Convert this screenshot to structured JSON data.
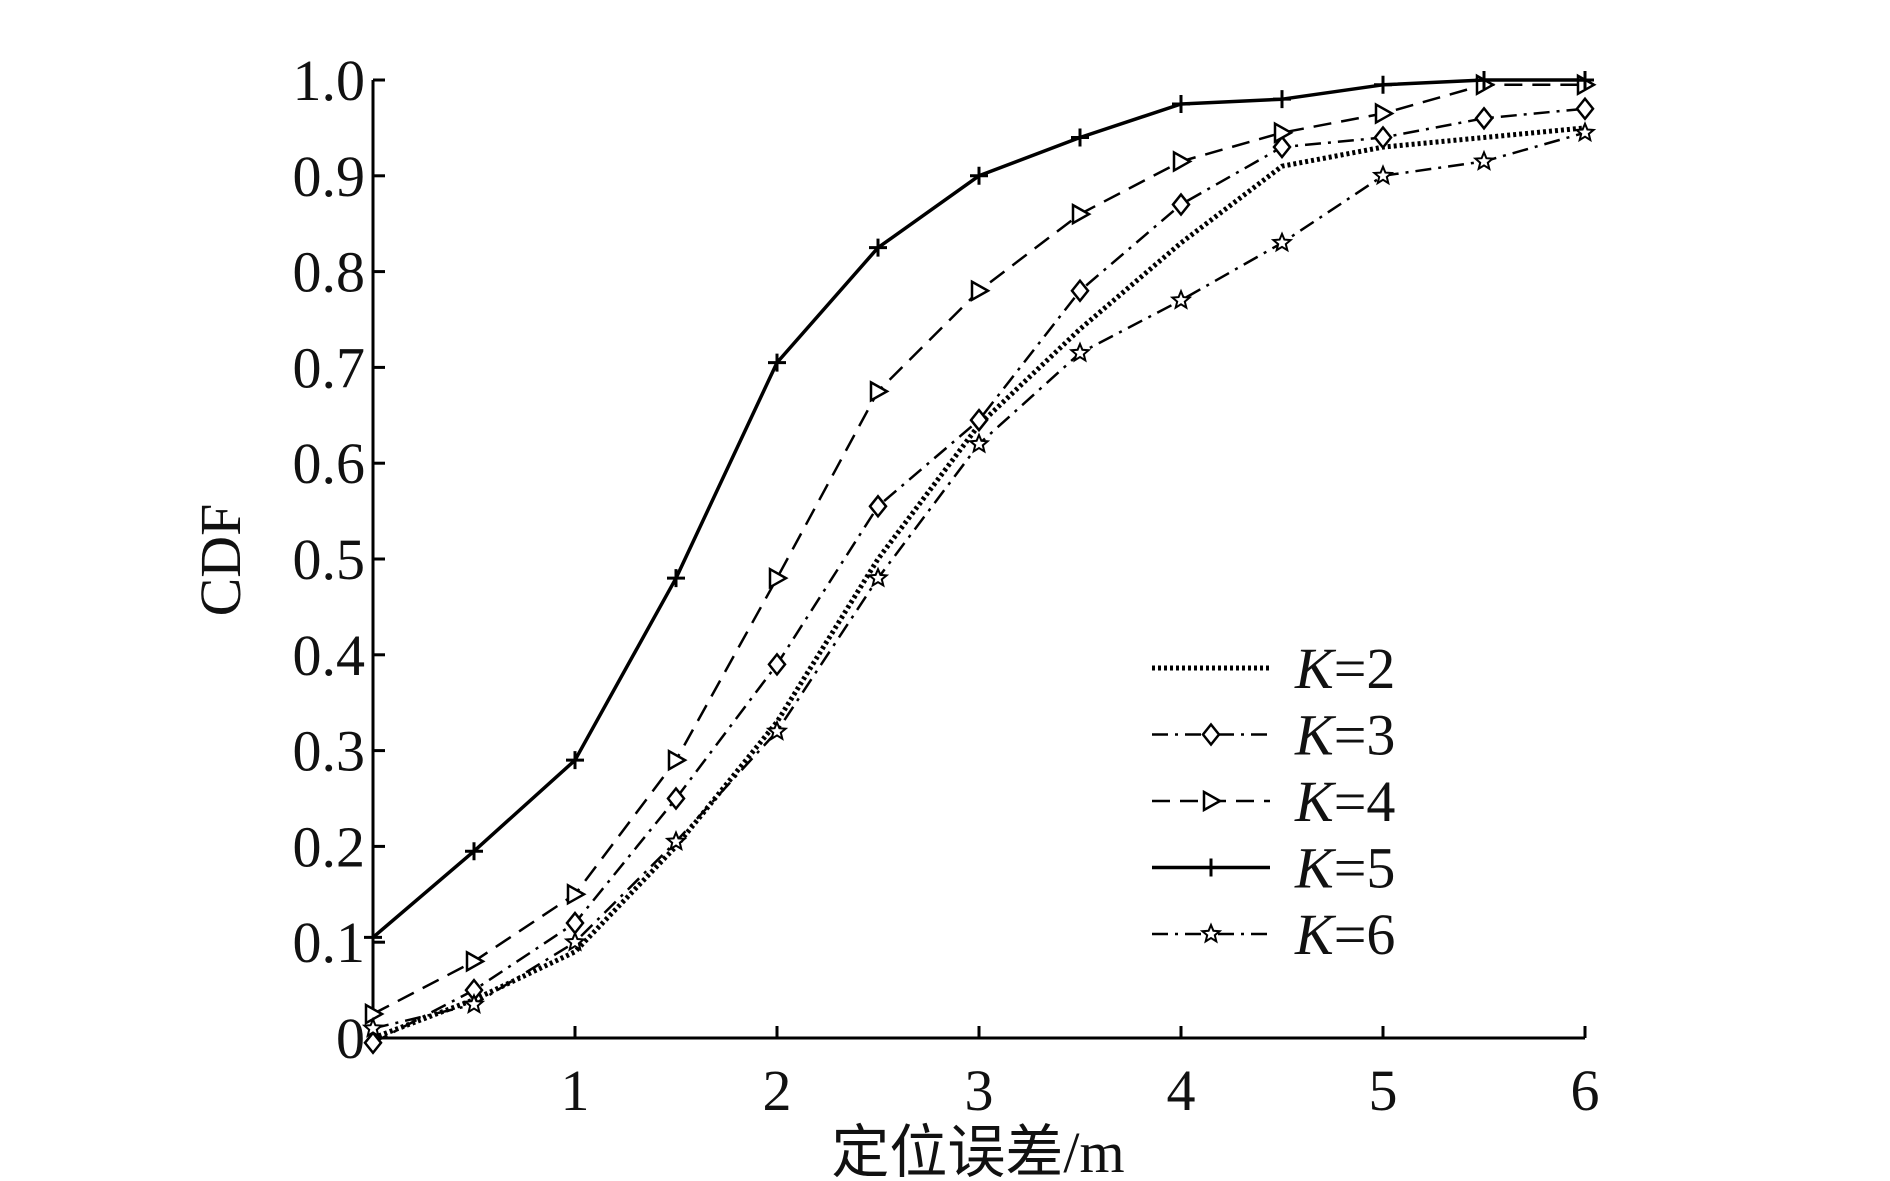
{
  "chart_data": {
    "type": "line",
    "title": "",
    "xlabel": "定位误差/m",
    "ylabel": "CDF",
    "xlim": [
      0,
      6
    ],
    "ylim": [
      0,
      1.0
    ],
    "xticks": [
      1,
      2,
      3,
      4,
      5,
      6
    ],
    "xtick_labels": [
      "1",
      "2",
      "3",
      "4",
      "5",
      "6"
    ],
    "yticks": [
      0,
      0.1,
      0.2,
      0.3,
      0.4,
      0.5,
      0.6,
      0.7,
      0.8,
      0.9,
      1.0
    ],
    "ytick_labels": [
      "0",
      "0.1",
      "0.2",
      "0.3",
      "0.4",
      "0.5",
      "0.6",
      "0.7",
      "0.8",
      "0.9",
      "1.0"
    ],
    "grid": false,
    "legend_position": "lower-right",
    "x": [
      0,
      0.5,
      1,
      1.5,
      2,
      2.5,
      3,
      3.5,
      4,
      4.5,
      5,
      5.5,
      6
    ],
    "series": [
      {
        "name": "K=2",
        "name_italic": "K",
        "name_rest": "=2",
        "line_style": "dotted",
        "marker": "none",
        "values": [
          0.0,
          0.04,
          0.09,
          0.2,
          0.33,
          0.5,
          0.64,
          0.74,
          0.83,
          0.91,
          0.93,
          0.94,
          0.95
        ]
      },
      {
        "name": "K=3",
        "name_italic": "K",
        "name_rest": "=3",
        "line_style": "dash-dot",
        "marker": "diamond",
        "values": [
          -0.005,
          0.05,
          0.12,
          0.25,
          0.39,
          0.555,
          0.645,
          0.78,
          0.87,
          0.93,
          0.94,
          0.96,
          0.97
        ]
      },
      {
        "name": "K=4",
        "name_italic": "K",
        "name_rest": "=4",
        "line_style": "dashed",
        "marker": "triangle-right",
        "values": [
          0.025,
          0.08,
          0.15,
          0.29,
          0.48,
          0.675,
          0.78,
          0.86,
          0.915,
          0.945,
          0.965,
          0.995,
          0.995
        ]
      },
      {
        "name": "K=5",
        "name_italic": "K",
        "name_rest": "=5",
        "line_style": "solid",
        "marker": "plus",
        "values": [
          0.105,
          0.195,
          0.29,
          0.48,
          0.705,
          0.825,
          0.9,
          0.94,
          0.975,
          0.98,
          0.995,
          1.0,
          1.0
        ]
      },
      {
        "name": "K=6",
        "name_italic": "K",
        "name_rest": "=6",
        "line_style": "dash-dot",
        "marker": "star",
        "values": [
          0.01,
          0.035,
          0.1,
          0.205,
          0.32,
          0.48,
          0.62,
          0.715,
          0.77,
          0.83,
          0.9,
          0.915,
          0.945
        ]
      }
    ]
  }
}
